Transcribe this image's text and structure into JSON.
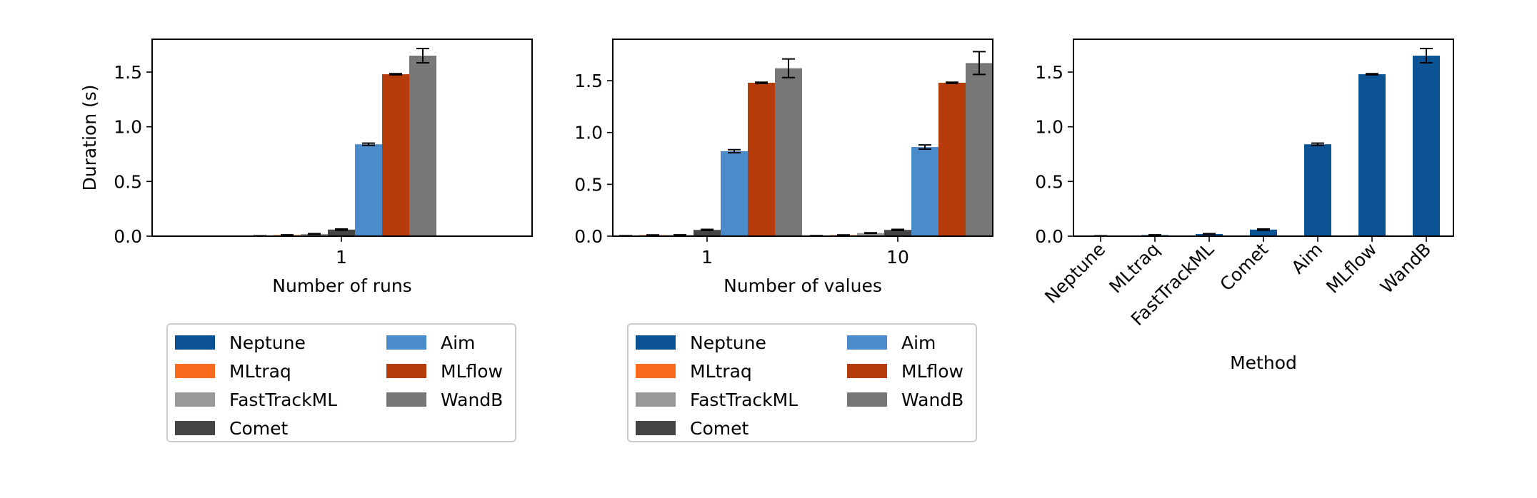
{
  "colors": {
    "Neptune": "#0c5394",
    "MLtraq": "#fa6a1d",
    "FastTrackML": "#999999",
    "Comet": "#444444",
    "Aim": "#4c8bc9",
    "MLflow": "#b73c0b",
    "WandB": "#777777"
  },
  "chart_data": [
    {
      "type": "bar",
      "xlabel": "Number of runs",
      "ylabel": "Duration (s)",
      "ylim": [
        0,
        1.8
      ],
      "yticks": [
        "0.0",
        "0.5",
        "1.0",
        "1.5"
      ],
      "categories": [
        "1"
      ],
      "series": [
        {
          "name": "Neptune",
          "values": [
            0.002
          ],
          "errors": [
            0.001
          ]
        },
        {
          "name": "MLtraq",
          "values": [
            0.01
          ],
          "errors": [
            0.002
          ]
        },
        {
          "name": "FastTrackML",
          "values": [
            0.02
          ],
          "errors": [
            0.003
          ]
        },
        {
          "name": "Comet",
          "values": [
            0.06
          ],
          "errors": [
            0.005
          ]
        },
        {
          "name": "Aim",
          "values": [
            0.84
          ],
          "errors": [
            0.01
          ]
        },
        {
          "name": "MLflow",
          "values": [
            1.48
          ],
          "errors": [
            0.005
          ]
        },
        {
          "name": "WandB",
          "values": [
            1.65
          ],
          "errors": [
            0.065
          ]
        }
      ],
      "legend": {
        "placement": "below",
        "columns": 2
      }
    },
    {
      "type": "bar",
      "xlabel": "Number of values",
      "ylabel": "",
      "ylim": [
        0,
        1.9
      ],
      "yticks": [
        "0.0",
        "0.5",
        "1.0",
        "1.5"
      ],
      "categories": [
        "1",
        "10"
      ],
      "series": [
        {
          "name": "Neptune",
          "values": [
            0.003,
            0.004
          ],
          "errors": [
            0.001,
            0.001
          ]
        },
        {
          "name": "MLtraq",
          "values": [
            0.01,
            0.01
          ],
          "errors": [
            0.002,
            0.002
          ]
        },
        {
          "name": "FastTrackML",
          "values": [
            0.01,
            0.03
          ],
          "errors": [
            0.003,
            0.003
          ]
        },
        {
          "name": "Comet",
          "values": [
            0.06,
            0.06
          ],
          "errors": [
            0.005,
            0.005
          ]
        },
        {
          "name": "Aim",
          "values": [
            0.82,
            0.86
          ],
          "errors": [
            0.015,
            0.02
          ]
        },
        {
          "name": "MLflow",
          "values": [
            1.48,
            1.48
          ],
          "errors": [
            0.005,
            0.005
          ]
        },
        {
          "name": "WandB",
          "values": [
            1.62,
            1.67
          ],
          "errors": [
            0.09,
            0.11
          ]
        }
      ],
      "legend": {
        "placement": "below",
        "columns": 2
      }
    },
    {
      "type": "bar",
      "xlabel": "Method",
      "ylabel": "",
      "ylim": [
        0,
        1.8
      ],
      "yticks": [
        "0.0",
        "0.5",
        "1.0",
        "1.5"
      ],
      "categories": [
        "Neptune",
        "MLtraq",
        "FastTrackML",
        "Comet",
        "Aim",
        "MLflow",
        "WandB"
      ],
      "values": [
        0.002,
        0.01,
        0.02,
        0.06,
        0.84,
        1.48,
        1.65
      ],
      "errors": [
        0.001,
        0.002,
        0.003,
        0.005,
        0.01,
        0.005,
        0.065
      ],
      "color": "#0c5394"
    }
  ]
}
